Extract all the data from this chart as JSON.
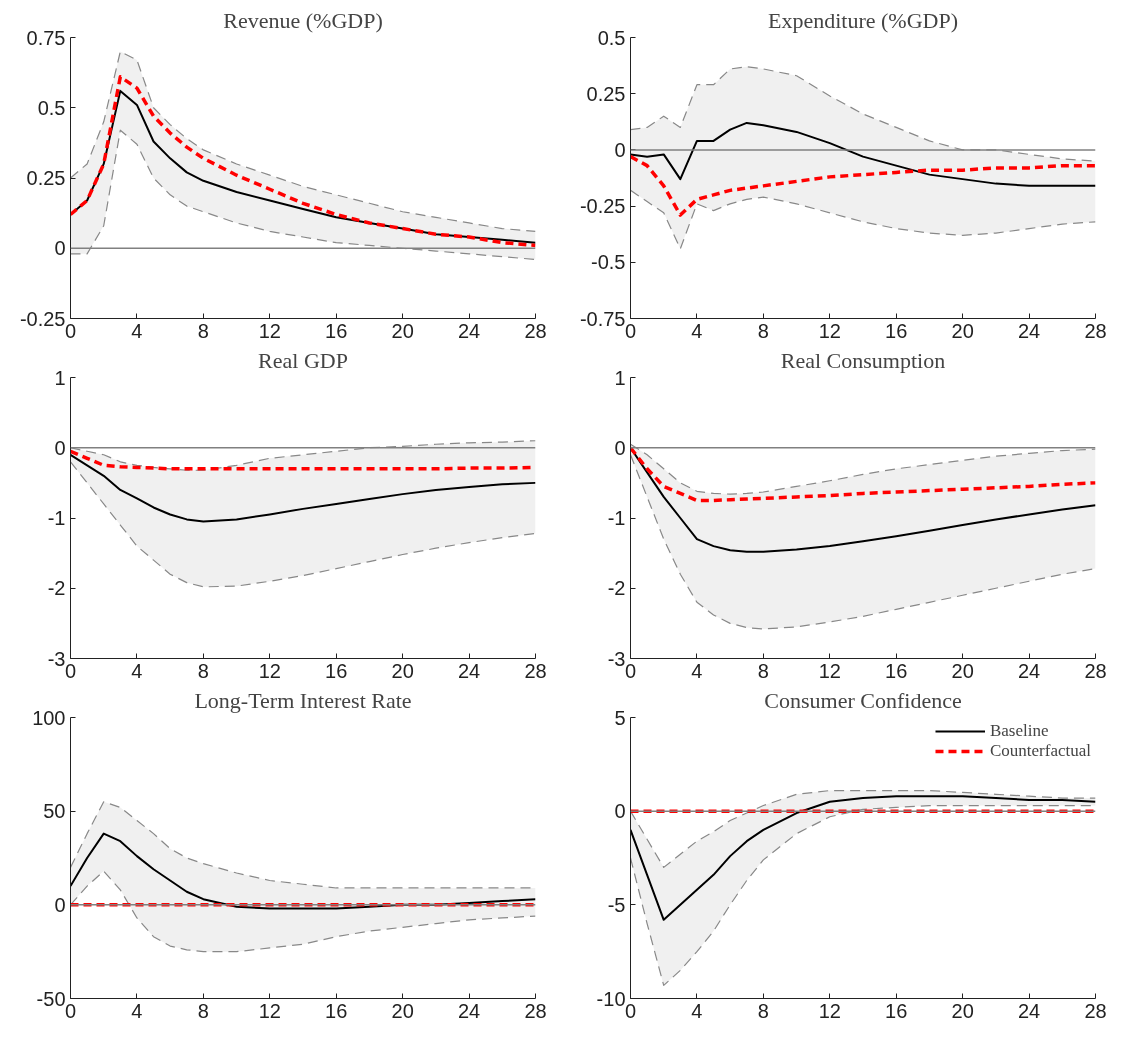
{
  "chart_data": [
    {
      "type": "line",
      "title": "Revenue (%GDP)",
      "x": [
        0,
        1,
        2,
        3,
        4,
        5,
        6,
        7,
        8,
        10,
        12,
        14,
        16,
        18,
        20,
        22,
        24,
        26,
        28
      ],
      "xlim": [
        0,
        28
      ],
      "xticks": [
        0,
        4,
        8,
        12,
        16,
        20,
        24,
        28
      ],
      "ylim": [
        -0.25,
        0.75
      ],
      "yticks": [
        -0.25,
        0,
        0.25,
        0.5,
        0.75
      ],
      "grid": false,
      "legend": false,
      "ref_lines": [
        {
          "axis": "y",
          "value": 0,
          "color": "#808080"
        }
      ],
      "series": [
        {
          "color": "#000000",
          "line_style": "solid",
          "values": [
            0.12,
            0.17,
            0.3,
            0.56,
            0.51,
            0.38,
            0.32,
            0.27,
            0.24,
            0.2,
            0.17,
            0.14,
            0.11,
            0.09,
            0.07,
            0.05,
            0.04,
            0.03,
            0.02
          ],
          "lower": [
            -0.02,
            -0.02,
            0.08,
            0.42,
            0.37,
            0.25,
            0.19,
            0.15,
            0.13,
            0.09,
            0.06,
            0.04,
            0.02,
            0.01,
            0.0,
            -0.01,
            -0.02,
            -0.03,
            -0.04
          ],
          "upper": [
            0.25,
            0.3,
            0.45,
            0.7,
            0.67,
            0.5,
            0.44,
            0.39,
            0.35,
            0.3,
            0.26,
            0.22,
            0.19,
            0.16,
            0.13,
            0.11,
            0.09,
            0.07,
            0.06
          ]
        },
        {
          "color": "#ff0000",
          "line_style": "dashed",
          "values": [
            0.12,
            0.17,
            0.3,
            0.61,
            0.57,
            0.47,
            0.41,
            0.36,
            0.32,
            0.26,
            0.21,
            0.16,
            0.12,
            0.09,
            0.07,
            0.05,
            0.04,
            0.02,
            0.01
          ]
        },
        {
          "color": "#888888",
          "line_style": "dashed",
          "values": [
            -0.02,
            -0.02,
            0.08,
            0.42,
            0.37,
            0.25,
            0.19,
            0.15,
            0.13,
            0.09,
            0.06,
            0.04,
            0.02,
            0.01,
            0.0,
            -0.01,
            -0.02,
            -0.03,
            -0.04
          ]
        },
        {
          "color": "#888888",
          "line_style": "dashed",
          "values": [
            0.25,
            0.3,
            0.45,
            0.7,
            0.67,
            0.5,
            0.44,
            0.39,
            0.35,
            0.3,
            0.26,
            0.22,
            0.19,
            0.16,
            0.13,
            0.11,
            0.09,
            0.07,
            0.06
          ]
        }
      ]
    },
    {
      "type": "line",
      "title": "Expenditure (%GDP)",
      "x": [
        0,
        1,
        2,
        3,
        4,
        5,
        6,
        7,
        8,
        10,
        12,
        14,
        16,
        18,
        20,
        22,
        24,
        26,
        28
      ],
      "xlim": [
        0,
        28
      ],
      "xticks": [
        0,
        4,
        8,
        12,
        16,
        20,
        24,
        28
      ],
      "ylim": [
        -0.75,
        0.5
      ],
      "yticks": [
        -0.75,
        -0.5,
        -0.25,
        0,
        0.25,
        0.5
      ],
      "grid": false,
      "legend": false,
      "ref_lines": [
        {
          "axis": "y",
          "value": 0,
          "color": "#808080"
        }
      ],
      "series": [
        {
          "color": "#000000",
          "line_style": "solid",
          "values": [
            -0.02,
            -0.03,
            -0.02,
            -0.13,
            0.04,
            0.04,
            0.09,
            0.12,
            0.11,
            0.08,
            0.03,
            -0.03,
            -0.07,
            -0.11,
            -0.13,
            -0.15,
            -0.16,
            -0.16,
            -0.16
          ],
          "lower": [
            -0.18,
            -0.23,
            -0.28,
            -0.44,
            -0.24,
            -0.27,
            -0.24,
            -0.22,
            -0.21,
            -0.24,
            -0.28,
            -0.32,
            -0.35,
            -0.37,
            -0.38,
            -0.37,
            -0.35,
            -0.33,
            -0.32
          ],
          "upper": [
            0.09,
            0.1,
            0.15,
            0.1,
            0.29,
            0.29,
            0.36,
            0.37,
            0.36,
            0.33,
            0.24,
            0.16,
            0.1,
            0.04,
            0.0,
            0.0,
            -0.02,
            -0.04,
            -0.05
          ]
        },
        {
          "color": "#ff0000",
          "line_style": "dashed",
          "values": [
            -0.03,
            -0.07,
            -0.16,
            -0.29,
            -0.22,
            -0.2,
            -0.18,
            -0.17,
            -0.16,
            -0.14,
            -0.12,
            -0.11,
            -0.1,
            -0.09,
            -0.09,
            -0.08,
            -0.08,
            -0.07,
            -0.07
          ]
        },
        {
          "color": "#888888",
          "line_style": "dashed",
          "values": [
            -0.18,
            -0.23,
            -0.28,
            -0.44,
            -0.24,
            -0.27,
            -0.24,
            -0.22,
            -0.21,
            -0.24,
            -0.28,
            -0.32,
            -0.35,
            -0.37,
            -0.38,
            -0.37,
            -0.35,
            -0.33,
            -0.32
          ]
        },
        {
          "color": "#888888",
          "line_style": "dashed",
          "values": [
            0.09,
            0.1,
            0.15,
            0.1,
            0.29,
            0.29,
            0.36,
            0.37,
            0.36,
            0.33,
            0.24,
            0.16,
            0.1,
            0.04,
            0.0,
            0.0,
            -0.02,
            -0.04,
            -0.05
          ]
        }
      ]
    },
    {
      "type": "line",
      "title": "Real GDP",
      "x": [
        0,
        1,
        2,
        3,
        4,
        5,
        6,
        7,
        8,
        10,
        12,
        14,
        16,
        18,
        20,
        22,
        24,
        26,
        28
      ],
      "xlim": [
        0,
        28
      ],
      "xticks": [
        0,
        4,
        8,
        12,
        16,
        20,
        24,
        28
      ],
      "ylim": [
        -3,
        1
      ],
      "yticks": [
        -3,
        -2,
        -1,
        0,
        1
      ],
      "grid": false,
      "legend": false,
      "ref_lines": [
        {
          "axis": "y",
          "value": 0,
          "color": "#808080"
        }
      ],
      "series": [
        {
          "color": "#000000",
          "line_style": "solid",
          "values": [
            -0.1,
            -0.25,
            -0.4,
            -0.6,
            -0.72,
            -0.85,
            -0.95,
            -1.02,
            -1.05,
            -1.02,
            -0.95,
            -0.87,
            -0.8,
            -0.73,
            -0.66,
            -0.6,
            -0.56,
            -0.52,
            -0.5
          ],
          "lower": [
            -0.2,
            -0.5,
            -0.8,
            -1.1,
            -1.4,
            -1.6,
            -1.8,
            -1.92,
            -1.98,
            -1.97,
            -1.9,
            -1.82,
            -1.72,
            -1.62,
            -1.52,
            -1.43,
            -1.35,
            -1.28,
            -1.22
          ],
          "upper": [
            0.0,
            -0.05,
            -0.1,
            -0.2,
            -0.25,
            -0.28,
            -0.3,
            -0.32,
            -0.32,
            -0.25,
            -0.15,
            -0.1,
            -0.05,
            0.0,
            0.02,
            0.05,
            0.07,
            0.08,
            0.1
          ]
        },
        {
          "color": "#ff0000",
          "line_style": "dashed",
          "values": [
            -0.05,
            -0.15,
            -0.25,
            -0.27,
            -0.28,
            -0.29,
            -0.3,
            -0.3,
            -0.3,
            -0.3,
            -0.3,
            -0.3,
            -0.3,
            -0.3,
            -0.3,
            -0.3,
            -0.29,
            -0.29,
            -0.28
          ]
        },
        {
          "color": "#888888",
          "line_style": "dashed",
          "values": [
            -0.2,
            -0.5,
            -0.8,
            -1.1,
            -1.4,
            -1.6,
            -1.8,
            -1.92,
            -1.98,
            -1.97,
            -1.9,
            -1.82,
            -1.72,
            -1.62,
            -1.52,
            -1.43,
            -1.35,
            -1.28,
            -1.22
          ]
        },
        {
          "color": "#888888",
          "line_style": "dashed",
          "values": [
            0.0,
            -0.05,
            -0.1,
            -0.2,
            -0.25,
            -0.28,
            -0.3,
            -0.32,
            -0.32,
            -0.25,
            -0.15,
            -0.1,
            -0.05,
            0.0,
            0.02,
            0.05,
            0.07,
            0.08,
            0.1
          ]
        }
      ]
    },
    {
      "type": "line",
      "title": "Real Consumption",
      "x": [
        0,
        1,
        2,
        3,
        4,
        5,
        6,
        7,
        8,
        10,
        12,
        14,
        16,
        18,
        20,
        22,
        24,
        26,
        28
      ],
      "xlim": [
        0,
        28
      ],
      "xticks": [
        0,
        4,
        8,
        12,
        16,
        20,
        24,
        28
      ],
      "ylim": [
        -3,
        1
      ],
      "yticks": [
        -3,
        -2,
        -1,
        0,
        1
      ],
      "grid": false,
      "legend": false,
      "ref_lines": [
        {
          "axis": "y",
          "value": 0,
          "color": "#808080"
        }
      ],
      "series": [
        {
          "color": "#000000",
          "line_style": "solid",
          "values": [
            0.0,
            -0.35,
            -0.7,
            -1.0,
            -1.3,
            -1.4,
            -1.46,
            -1.48,
            -1.48,
            -1.45,
            -1.4,
            -1.33,
            -1.26,
            -1.18,
            -1.1,
            -1.02,
            -0.95,
            -0.88,
            -0.82
          ],
          "lower": [
            -0.1,
            -0.7,
            -1.3,
            -1.8,
            -2.2,
            -2.38,
            -2.5,
            -2.56,
            -2.58,
            -2.55,
            -2.48,
            -2.4,
            -2.3,
            -2.2,
            -2.1,
            -2.0,
            -1.9,
            -1.8,
            -1.72
          ],
          "upper": [
            0.05,
            -0.1,
            -0.3,
            -0.5,
            -0.62,
            -0.65,
            -0.66,
            -0.65,
            -0.63,
            -0.55,
            -0.47,
            -0.38,
            -0.3,
            -0.24,
            -0.18,
            -0.12,
            -0.08,
            -0.04,
            -0.02
          ]
        },
        {
          "color": "#ff0000",
          "line_style": "dashed",
          "values": [
            0.0,
            -0.3,
            -0.55,
            -0.65,
            -0.75,
            -0.75,
            -0.74,
            -0.73,
            -0.72,
            -0.7,
            -0.68,
            -0.65,
            -0.63,
            -0.61,
            -0.59,
            -0.57,
            -0.55,
            -0.52,
            -0.5
          ]
        },
        {
          "color": "#888888",
          "line_style": "dashed",
          "values": [
            -0.1,
            -0.7,
            -1.3,
            -1.8,
            -2.2,
            -2.38,
            -2.5,
            -2.56,
            -2.58,
            -2.55,
            -2.48,
            -2.4,
            -2.3,
            -2.2,
            -2.1,
            -2.0,
            -1.9,
            -1.8,
            -1.72
          ]
        },
        {
          "color": "#888888",
          "line_style": "dashed",
          "values": [
            0.05,
            -0.1,
            -0.3,
            -0.5,
            -0.62,
            -0.65,
            -0.66,
            -0.65,
            -0.63,
            -0.55,
            -0.47,
            -0.38,
            -0.3,
            -0.24,
            -0.18,
            -0.12,
            -0.08,
            -0.04,
            -0.02
          ]
        }
      ]
    },
    {
      "type": "line",
      "title": "Long-Term Interest Rate",
      "x": [
        0,
        1,
        2,
        3,
        4,
        5,
        6,
        7,
        8,
        10,
        12,
        14,
        16,
        18,
        20,
        22,
        24,
        26,
        28
      ],
      "xlim": [
        0,
        28
      ],
      "xticks": [
        0,
        4,
        8,
        12,
        16,
        20,
        24,
        28
      ],
      "ylim": [
        -50,
        100
      ],
      "yticks": [
        -50,
        0,
        50,
        100
      ],
      "grid": false,
      "legend": false,
      "ref_lines": [
        {
          "axis": "y",
          "value": 0,
          "color": "#808080"
        }
      ],
      "series": [
        {
          "color": "#000000",
          "line_style": "solid",
          "values": [
            10,
            25,
            38,
            34,
            26,
            19,
            13,
            7,
            3,
            -1,
            -2,
            -2,
            -2,
            -1,
            0,
            0,
            1,
            2,
            3
          ],
          "lower": [
            0,
            10,
            18,
            8,
            -7,
            -17,
            -22,
            -24,
            -25,
            -25,
            -23,
            -21,
            -17,
            -14,
            -12,
            -10,
            -8,
            -7,
            -6
          ],
          "upper": [
            20,
            38,
            55,
            52,
            45,
            38,
            30,
            25,
            22,
            17,
            13,
            11,
            9,
            9,
            9,
            9,
            9,
            9,
            9
          ]
        },
        {
          "color": "#ff0000",
          "line_style": "dashed",
          "values": [
            0,
            0,
            0,
            0,
            0,
            0,
            0,
            0,
            0,
            0,
            0,
            0,
            0,
            0,
            0,
            0,
            0,
            0,
            0
          ]
        },
        {
          "color": "#888888",
          "line_style": "dashed",
          "values": [
            0,
            10,
            18,
            8,
            -7,
            -17,
            -22,
            -24,
            -25,
            -25,
            -23,
            -21,
            -17,
            -14,
            -12,
            -10,
            -8,
            -7,
            -6
          ]
        },
        {
          "color": "#888888",
          "line_style": "dashed",
          "values": [
            20,
            38,
            55,
            52,
            45,
            38,
            30,
            25,
            22,
            17,
            13,
            11,
            9,
            9,
            9,
            9,
            9,
            9,
            9
          ]
        }
      ]
    },
    {
      "type": "line",
      "title": "Consumer Confidence",
      "x": [
        0,
        1,
        2,
        3,
        4,
        5,
        6,
        7,
        8,
        10,
        12,
        14,
        16,
        18,
        20,
        22,
        24,
        26,
        28
      ],
      "xlim": [
        0,
        28
      ],
      "xticks": [
        0,
        4,
        8,
        12,
        16,
        20,
        24,
        28
      ],
      "ylim": [
        -10,
        5
      ],
      "yticks": [
        -10,
        -5,
        0,
        5
      ],
      "grid": false,
      "legend": "top right",
      "ref_lines": [
        {
          "axis": "y",
          "value": 0,
          "color": "#808080"
        }
      ],
      "series": [
        {
          "name": "Baseline",
          "color": "#000000",
          "line_style": "solid",
          "values": [
            -1,
            -3.4,
            -5.8,
            -5,
            -4.2,
            -3.4,
            -2.4,
            -1.6,
            -1,
            -0.1,
            0.5,
            0.7,
            0.8,
            0.8,
            0.8,
            0.7,
            0.6,
            0.6,
            0.5
          ],
          "lower": [
            -2.5,
            -6,
            -9.3,
            -8.5,
            -7.5,
            -6.4,
            -5,
            -3.7,
            -2.6,
            -1.2,
            -0.3,
            0.1,
            0.2,
            0.3,
            0.3,
            0.3,
            0.3,
            0.3,
            0.3
          ],
          "upper": [
            0,
            -1.5,
            -3,
            -2.3,
            -1.6,
            -1.1,
            -0.5,
            -0.1,
            0.3,
            0.9,
            1.1,
            1.1,
            1.1,
            1.1,
            1,
            0.9,
            0.8,
            0.7,
            0.7
          ]
        },
        {
          "name": "Counterfactual",
          "color": "#ff0000",
          "line_style": "dashed",
          "values": [
            0,
            0,
            0,
            0,
            0,
            0,
            0,
            0,
            0,
            0,
            0,
            0,
            0,
            0,
            0,
            0,
            0,
            0,
            0
          ]
        },
        {
          "color": "#888888",
          "line_style": "dashed",
          "values": [
            -2.5,
            -6,
            -9.3,
            -8.5,
            -7.5,
            -6.4,
            -5,
            -3.7,
            -2.6,
            -1.2,
            -0.3,
            0.1,
            0.2,
            0.3,
            0.3,
            0.3,
            0.3,
            0.3,
            0.3
          ]
        },
        {
          "color": "#888888",
          "line_style": "dashed",
          "values": [
            0,
            -1.5,
            -3,
            -2.3,
            -1.6,
            -1.1,
            -0.5,
            -0.1,
            0.3,
            0.9,
            1.1,
            1.1,
            1.1,
            1.1,
            1,
            0.9,
            0.8,
            0.7,
            0.7
          ]
        }
      ]
    }
  ]
}
